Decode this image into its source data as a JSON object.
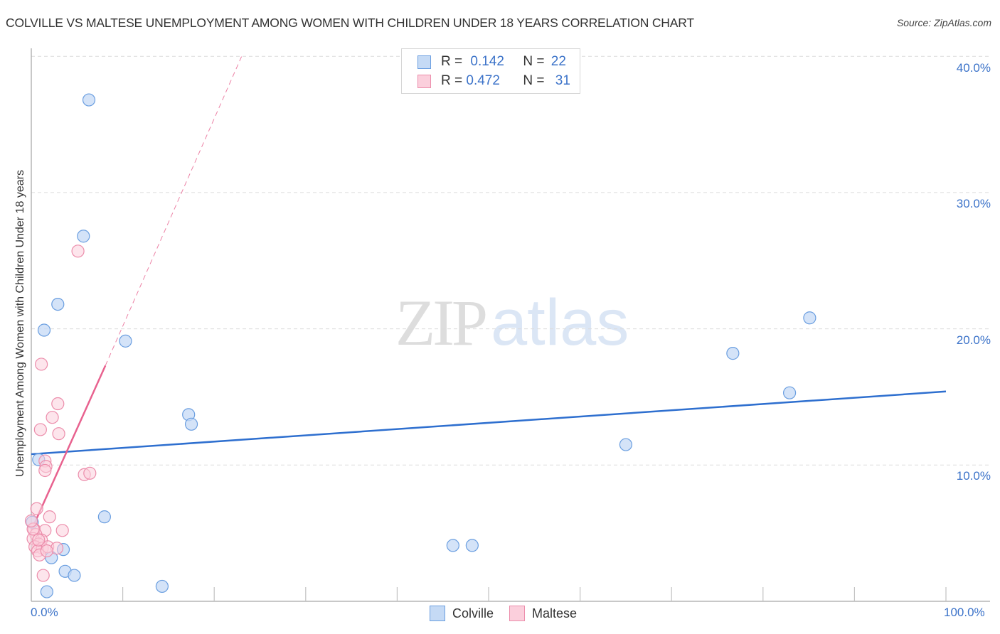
{
  "header": {
    "title": "COLVILLE VS MALTESE UNEMPLOYMENT AMONG WOMEN WITH CHILDREN UNDER 18 YEARS CORRELATION CHART",
    "source": "Source: ZipAtlas.com"
  },
  "watermark": {
    "zip": "ZIP",
    "atlas": "atlas"
  },
  "legend": {
    "rows": [
      {
        "r_label": "R = ",
        "r_value": "0.142",
        "n_label": "N = ",
        "n_value": "22",
        "color": "#a9c8f0"
      },
      {
        "r_label": "R = ",
        "r_value": "0.472",
        "n_label": "N = ",
        "n_value": "31",
        "color": "#f7b8ca"
      }
    ],
    "bottom": [
      "Colville",
      "Maltese"
    ]
  },
  "axes": {
    "ylabel": "Unemployment Among Women with Children Under 18 years",
    "yticks": [
      "40.0%",
      "30.0%",
      "20.0%",
      "10.0%"
    ],
    "xticks": [
      "0.0%",
      "100.0%"
    ]
  },
  "colors": {
    "colville_fill": "#c5daf5",
    "colville_stroke": "#6a9ee0",
    "colville_line": "#2e6fcf",
    "maltese_fill": "#fbcfdc",
    "maltese_stroke": "#ec8dab",
    "maltese_line": "#e8628f",
    "tick_text": "#3c73c9"
  },
  "chart_data": {
    "type": "scatter",
    "title": "COLVILLE VS MALTESE UNEMPLOYMENT AMONG WOMEN WITH CHILDREN UNDER 18 YEARS CORRELATION CHART",
    "xlabel": "",
    "ylabel": "Unemployment Among Women with Children Under 18 years",
    "xlim": [
      0,
      100
    ],
    "ylim": [
      0,
      42
    ],
    "x_unit": "%",
    "y_unit": "%",
    "grid": "horizontal dashed at 10, 20, 30, 40",
    "legend_position": "top-center and bottom-center",
    "series": [
      {
        "name": "Colville",
        "R": 0.142,
        "N": 22,
        "trend": {
          "x": [
            0,
            100
          ],
          "y": [
            10.8,
            15.4
          ],
          "style": "solid"
        },
        "points": [
          [
            6.3,
            36.8
          ],
          [
            5.7,
            26.8
          ],
          [
            2.9,
            21.8
          ],
          [
            1.4,
            19.9
          ],
          [
            10.3,
            19.1
          ],
          [
            17.2,
            13.7
          ],
          [
            17.5,
            13.0
          ],
          [
            0.8,
            10.4
          ],
          [
            8.0,
            6.2
          ],
          [
            0.1,
            5.8
          ],
          [
            3.5,
            3.8
          ],
          [
            2.2,
            3.2
          ],
          [
            3.7,
            2.2
          ],
          [
            4.7,
            1.9
          ],
          [
            1.7,
            0.7
          ],
          [
            14.3,
            1.1
          ],
          [
            46.1,
            4.1
          ],
          [
            48.2,
            4.1
          ],
          [
            65.0,
            11.5
          ],
          [
            76.7,
            18.2
          ],
          [
            82.9,
            15.3
          ],
          [
            85.1,
            20.8
          ]
        ]
      },
      {
        "name": "Maltese",
        "R": 0.472,
        "N": 31,
        "trend": {
          "x": [
            0,
            8.1
          ],
          "y": [
            5.2,
            17.3
          ],
          "style": "solid",
          "extension": {
            "x": [
              8.1,
              23.0
            ],
            "y": [
              17.3,
              40.0
            ],
            "style": "dashed"
          }
        },
        "points": [
          [
            5.1,
            25.7
          ],
          [
            1.1,
            17.4
          ],
          [
            2.9,
            14.5
          ],
          [
            2.3,
            13.5
          ],
          [
            1.0,
            12.6
          ],
          [
            3.0,
            12.3
          ],
          [
            1.5,
            10.3
          ],
          [
            1.6,
            9.9
          ],
          [
            1.5,
            9.6
          ],
          [
            5.8,
            9.3
          ],
          [
            6.4,
            9.4
          ],
          [
            0.6,
            6.8
          ],
          [
            2.0,
            6.2
          ],
          [
            3.4,
            5.2
          ],
          [
            1.5,
            5.2
          ],
          [
            0.3,
            5.3
          ],
          [
            0.5,
            4.9
          ],
          [
            0.2,
            4.6
          ],
          [
            1.1,
            4.5
          ],
          [
            0.8,
            4.2
          ],
          [
            0.4,
            4.0
          ],
          [
            1.2,
            3.9
          ],
          [
            0.7,
            3.7
          ],
          [
            0.9,
            3.4
          ],
          [
            1.8,
            4.0
          ],
          [
            2.8,
            3.9
          ],
          [
            1.7,
            3.7
          ],
          [
            0.2,
            5.3
          ],
          [
            0.0,
            5.9
          ],
          [
            1.3,
            1.9
          ],
          [
            0.8,
            4.5
          ]
        ]
      }
    ]
  }
}
